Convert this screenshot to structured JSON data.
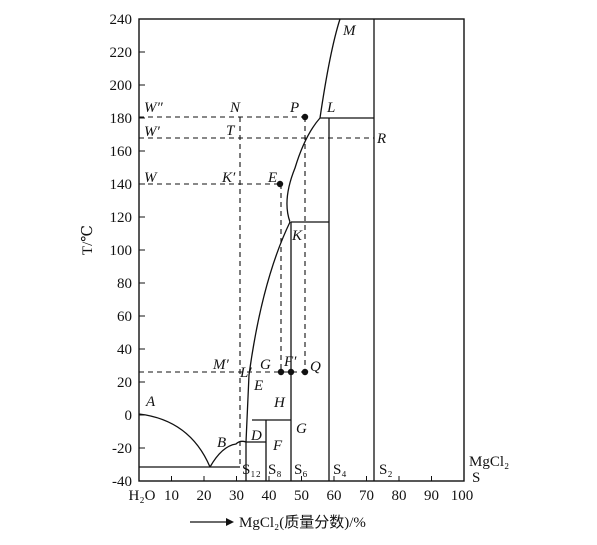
{
  "diagram": {
    "y_axis_label": "T/℃",
    "x_axis_label": "MgCl₂(质量分数)/%",
    "x_axis_arrow": "→",
    "x_ticks": [
      "H₂O",
      "10",
      "20",
      "30",
      "40",
      "50",
      "60",
      "70",
      "80",
      "90",
      "100"
    ],
    "y_ticks": [
      "240",
      "220",
      "200",
      "180",
      "160",
      "140",
      "120",
      "100",
      "80",
      "60",
      "40",
      "20",
      "0",
      "-20",
      "-40"
    ],
    "right_label_top": "MgCl₂",
    "right_label_bottom": "S",
    "points": [
      "M",
      "P",
      "L",
      "N",
      "W″",
      "W′",
      "T",
      "R",
      "W",
      "K′",
      "E",
      "K",
      "M′",
      "G",
      "F′",
      "Q",
      "L′",
      "E",
      "H",
      "G",
      "A",
      "B",
      "D",
      "F"
    ],
    "phases": [
      "S₁₂",
      "S₈",
      "S₆",
      "S₄",
      "S₂"
    ],
    "axis_range": {
      "x": [
        0,
        100
      ],
      "y": [
        -40,
        240
      ]
    }
  }
}
